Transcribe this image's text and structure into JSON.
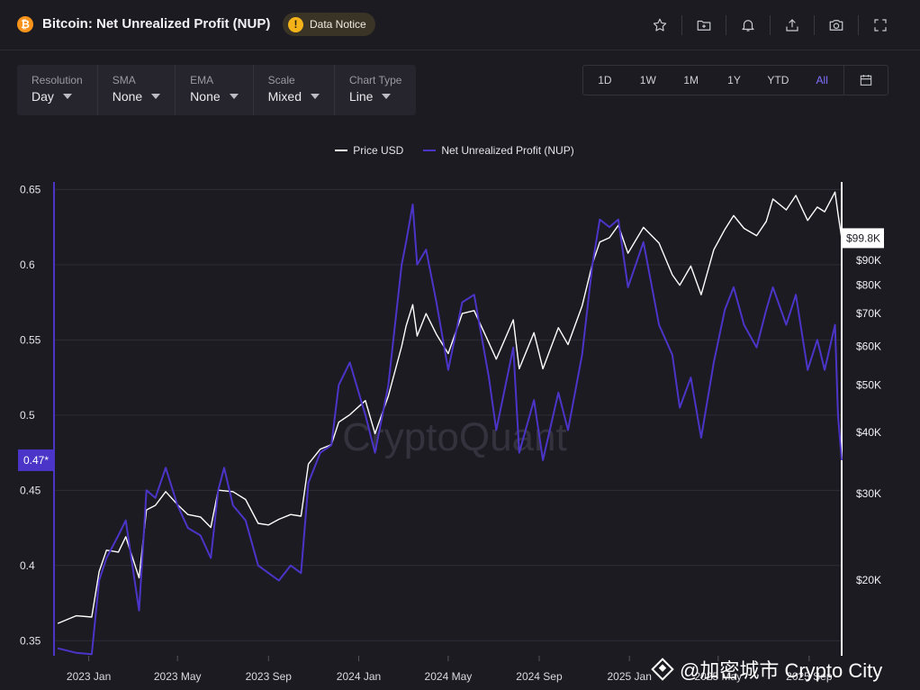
{
  "header": {
    "title": "Bitcoin: Net Unrealized Profit (NUP)",
    "logo_glyph": "₿",
    "notice_label": "Data Notice",
    "icons": [
      "star-icon",
      "folder-plus-icon",
      "bell-icon",
      "share-icon",
      "camera-icon",
      "fullscreen-icon"
    ]
  },
  "controls": [
    {
      "label": "Resolution",
      "value": "Day"
    },
    {
      "label": "SMA",
      "value": "None"
    },
    {
      "label": "EMA",
      "value": "None"
    },
    {
      "label": "Scale",
      "value": "Mixed"
    },
    {
      "label": "Chart Type",
      "value": "Line"
    }
  ],
  "ranges": {
    "options": [
      "1D",
      "1W",
      "1M",
      "1Y",
      "YTD",
      "All"
    ],
    "active": "All",
    "calendar_icon": "calendar-icon"
  },
  "colors": {
    "background": "#1c1b22",
    "price_line": "#ffffff",
    "nup_line": "#4b35c8",
    "active_accent": "#7f72ff"
  },
  "watermark": {
    "chart_brand": "CryptoQuant",
    "overlay": "@加密城市 Crypto City"
  },
  "chart_data": {
    "type": "line",
    "title": "Bitcoin: Net Unrealized Profit (NUP)",
    "legend_position": "top-center",
    "grid": true,
    "x_ticks": [
      "2023 Jan",
      "2023 May",
      "2023 Sep",
      "2024 Jan",
      "2024 May",
      "2024 Sep",
      "2025 Jan",
      "2025 May",
      "2025 Sep"
    ],
    "x_range": [
      "2022-11-15",
      "2025-10-15"
    ],
    "left_axis": {
      "ticks": [
        "0.65",
        "0.6",
        "0.55",
        "0.5",
        "0.45",
        "0.4",
        "0.35"
      ],
      "range": [
        0.34,
        0.655
      ],
      "current_label": "0.47*",
      "current_value": 0.47
    },
    "right_axis": {
      "scale": "log",
      "ticks": [
        "$90K",
        "$80K",
        "$70K",
        "$60K",
        "$50K",
        "$40K",
        "$30K",
        "$20K"
      ],
      "tick_values": [
        90000,
        80000,
        70000,
        60000,
        50000,
        40000,
        30000,
        20000
      ],
      "range": [
        14000,
        130000
      ],
      "current_label": "$99.8K",
      "current_value": 99800
    },
    "series": [
      {
        "name": "Price USD",
        "color": "#ffffff",
        "axis": "right",
        "points": [
          [
            "2022-11-20",
            16300
          ],
          [
            "2022-12-15",
            16900
          ],
          [
            "2023-01-05",
            16800
          ],
          [
            "2023-01-15",
            20800
          ],
          [
            "2023-01-25",
            23000
          ],
          [
            "2023-02-10",
            22800
          ],
          [
            "2023-02-20",
            24500
          ],
          [
            "2023-03-10",
            20200
          ],
          [
            "2023-03-20",
            27800
          ],
          [
            "2023-04-01",
            28400
          ],
          [
            "2023-04-15",
            30300
          ],
          [
            "2023-05-01",
            28500
          ],
          [
            "2023-05-15",
            27200
          ],
          [
            "2023-06-01",
            26900
          ],
          [
            "2023-06-15",
            25600
          ],
          [
            "2023-06-25",
            30500
          ],
          [
            "2023-07-15",
            30300
          ],
          [
            "2023-08-01",
            29200
          ],
          [
            "2023-08-18",
            26100
          ],
          [
            "2023-09-01",
            25900
          ],
          [
            "2023-09-15",
            26600
          ],
          [
            "2023-10-01",
            27200
          ],
          [
            "2023-10-15",
            27000
          ],
          [
            "2023-10-25",
            34500
          ],
          [
            "2023-11-10",
            37000
          ],
          [
            "2023-11-25",
            37800
          ],
          [
            "2023-12-05",
            42000
          ],
          [
            "2023-12-20",
            43500
          ],
          [
            "2024-01-10",
            46500
          ],
          [
            "2024-01-23",
            39800
          ],
          [
            "2024-02-10",
            47500
          ],
          [
            "2024-02-28",
            60000
          ],
          [
            "2024-03-05",
            66000
          ],
          [
            "2024-03-14",
            73000
          ],
          [
            "2024-03-20",
            63000
          ],
          [
            "2024-04-01",
            70000
          ],
          [
            "2024-04-15",
            63500
          ],
          [
            "2024-05-01",
            58000
          ],
          [
            "2024-05-20",
            70000
          ],
          [
            "2024-06-05",
            71000
          ],
          [
            "2024-06-25",
            61000
          ],
          [
            "2024-07-05",
            56500
          ],
          [
            "2024-07-28",
            68000
          ],
          [
            "2024-08-05",
            54000
          ],
          [
            "2024-08-25",
            64000
          ],
          [
            "2024-09-06",
            54000
          ],
          [
            "2024-09-27",
            65500
          ],
          [
            "2024-10-10",
            60500
          ],
          [
            "2024-10-29",
            72500
          ],
          [
            "2024-11-12",
            88500
          ],
          [
            "2024-11-22",
            98000
          ],
          [
            "2024-12-05",
            100000
          ],
          [
            "2024-12-17",
            106000
          ],
          [
            "2024-12-30",
            93000
          ],
          [
            "2025-01-20",
            105000
          ],
          [
            "2025-02-10",
            97500
          ],
          [
            "2025-02-28",
            84000
          ],
          [
            "2025-03-10",
            80000
          ],
          [
            "2025-03-25",
            87500
          ],
          [
            "2025-04-08",
            76500
          ],
          [
            "2025-04-25",
            94500
          ],
          [
            "2025-05-10",
            104000
          ],
          [
            "2025-05-22",
            111000
          ],
          [
            "2025-06-05",
            104500
          ],
          [
            "2025-06-22",
            101000
          ],
          [
            "2025-07-05",
            108000
          ],
          [
            "2025-07-14",
            120000
          ],
          [
            "2025-08-01",
            114000
          ],
          [
            "2025-08-14",
            122000
          ],
          [
            "2025-08-30",
            108500
          ],
          [
            "2025-09-12",
            115500
          ],
          [
            "2025-09-22",
            113000
          ],
          [
            "2025-10-06",
            124000
          ],
          [
            "2025-10-10",
            112000
          ],
          [
            "2025-10-15",
            99800
          ]
        ]
      },
      {
        "name": "Net Unrealized Profit (NUP)",
        "color": "#4b35c8",
        "axis": "left",
        "points": [
          [
            "2022-11-20",
            0.345
          ],
          [
            "2022-12-15",
            0.342
          ],
          [
            "2023-01-05",
            0.341
          ],
          [
            "2023-01-15",
            0.39
          ],
          [
            "2023-01-25",
            0.405
          ],
          [
            "2023-02-10",
            0.42
          ],
          [
            "2023-02-20",
            0.43
          ],
          [
            "2023-03-10",
            0.37
          ],
          [
            "2023-03-20",
            0.45
          ],
          [
            "2023-04-01",
            0.445
          ],
          [
            "2023-04-15",
            0.465
          ],
          [
            "2023-05-01",
            0.44
          ],
          [
            "2023-05-15",
            0.425
          ],
          [
            "2023-06-01",
            0.42
          ],
          [
            "2023-06-15",
            0.405
          ],
          [
            "2023-06-25",
            0.45
          ],
          [
            "2023-07-03",
            0.465
          ],
          [
            "2023-07-15",
            0.44
          ],
          [
            "2023-08-01",
            0.43
          ],
          [
            "2023-08-18",
            0.4
          ],
          [
            "2023-09-01",
            0.395
          ],
          [
            "2023-09-15",
            0.39
          ],
          [
            "2023-10-01",
            0.4
          ],
          [
            "2023-10-15",
            0.395
          ],
          [
            "2023-10-25",
            0.455
          ],
          [
            "2023-11-10",
            0.475
          ],
          [
            "2023-11-25",
            0.48
          ],
          [
            "2023-12-05",
            0.52
          ],
          [
            "2023-12-20",
            0.535
          ],
          [
            "2024-01-10",
            0.5
          ],
          [
            "2024-01-23",
            0.475
          ],
          [
            "2024-02-10",
            0.52
          ],
          [
            "2024-02-28",
            0.6
          ],
          [
            "2024-03-05",
            0.615
          ],
          [
            "2024-03-14",
            0.64
          ],
          [
            "2024-03-20",
            0.6
          ],
          [
            "2024-04-01",
            0.61
          ],
          [
            "2024-04-15",
            0.575
          ],
          [
            "2024-05-01",
            0.53
          ],
          [
            "2024-05-20",
            0.575
          ],
          [
            "2024-06-05",
            0.58
          ],
          [
            "2024-06-25",
            0.525
          ],
          [
            "2024-07-05",
            0.49
          ],
          [
            "2024-07-28",
            0.545
          ],
          [
            "2024-08-05",
            0.475
          ],
          [
            "2024-08-25",
            0.51
          ],
          [
            "2024-09-06",
            0.47
          ],
          [
            "2024-09-27",
            0.515
          ],
          [
            "2024-10-10",
            0.49
          ],
          [
            "2024-10-29",
            0.54
          ],
          [
            "2024-11-12",
            0.6
          ],
          [
            "2024-11-22",
            0.63
          ],
          [
            "2024-12-05",
            0.625
          ],
          [
            "2024-12-17",
            0.63
          ],
          [
            "2024-12-30",
            0.585
          ],
          [
            "2025-01-20",
            0.615
          ],
          [
            "2025-02-10",
            0.56
          ],
          [
            "2025-02-28",
            0.54
          ],
          [
            "2025-03-10",
            0.505
          ],
          [
            "2025-03-25",
            0.525
          ],
          [
            "2025-04-08",
            0.485
          ],
          [
            "2025-04-25",
            0.535
          ],
          [
            "2025-05-10",
            0.57
          ],
          [
            "2025-05-22",
            0.585
          ],
          [
            "2025-06-05",
            0.56
          ],
          [
            "2025-06-22",
            0.545
          ],
          [
            "2025-07-05",
            0.57
          ],
          [
            "2025-07-14",
            0.585
          ],
          [
            "2025-08-01",
            0.56
          ],
          [
            "2025-08-14",
            0.58
          ],
          [
            "2025-08-30",
            0.53
          ],
          [
            "2025-09-12",
            0.55
          ],
          [
            "2025-09-22",
            0.53
          ],
          [
            "2025-10-06",
            0.56
          ],
          [
            "2025-10-10",
            0.5
          ],
          [
            "2025-10-15",
            0.47
          ]
        ]
      }
    ]
  }
}
